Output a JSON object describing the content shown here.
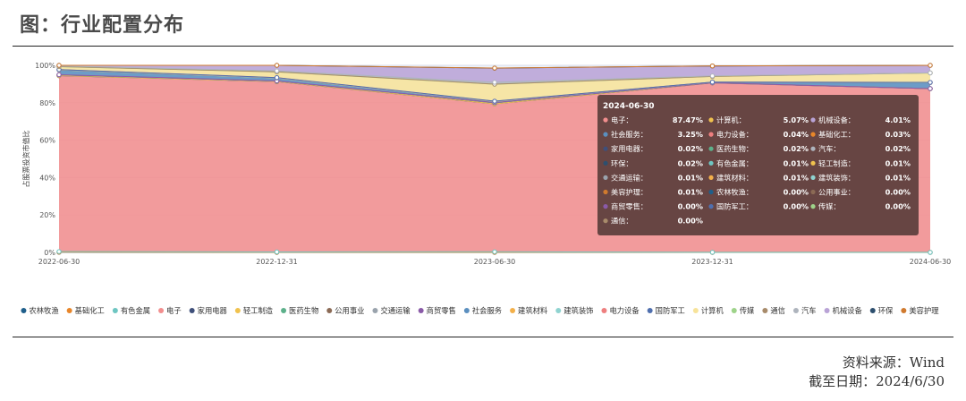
{
  "figure": {
    "title": "图：行业配置分布",
    "source": "资料来源：Wind",
    "as_of": "截至日期：2024/6/30"
  },
  "chart_data": {
    "type": "area",
    "stacked": true,
    "normalized": true,
    "ylabel": "占股票投资市值比",
    "ylim": [
      0,
      100
    ],
    "yticks": [
      "0%",
      "20%",
      "40%",
      "60%",
      "80%",
      "100%"
    ],
    "categories": [
      "2022-06-30",
      "2022-12-31",
      "2023-06-30",
      "2023-12-31",
      "2024-06-30"
    ],
    "series": [
      {
        "name": "农林牧渔",
        "color": "#1f5f8b",
        "values": [
          0.1,
          0.0,
          0.0,
          0.0,
          0.0
        ]
      },
      {
        "name": "基础化工",
        "color": "#e8862a",
        "values": [
          0.05,
          0.05,
          0.05,
          0.03,
          0.03
        ]
      },
      {
        "name": "有色金属",
        "color": "#6ec6c2",
        "values": [
          0.3,
          0.2,
          0.3,
          0.05,
          0.01
        ]
      },
      {
        "name": "电子",
        "color": "#f28e8e",
        "values": [
          94.0,
          91.0,
          79.0,
          90.5,
          87.47
        ]
      },
      {
        "name": "家用电器",
        "color": "#3f4f7a",
        "values": [
          0.05,
          0.05,
          0.05,
          0.02,
          0.02
        ]
      },
      {
        "name": "轻工制造",
        "color": "#f0c24e",
        "values": [
          0.05,
          0.05,
          0.05,
          0.02,
          0.01
        ]
      },
      {
        "name": "医药生物",
        "color": "#5cb08a",
        "values": [
          0.3,
          0.2,
          0.5,
          0.05,
          0.02
        ]
      },
      {
        "name": "公用事业",
        "color": "#8b6a55",
        "values": [
          0.05,
          0.05,
          0.05,
          0.0,
          0.0
        ]
      },
      {
        "name": "交通运输",
        "color": "#9aa3ad",
        "values": [
          0.05,
          0.05,
          0.05,
          0.01,
          0.01
        ]
      },
      {
        "name": "商贸零售",
        "color": "#8a5aa8",
        "values": [
          0.05,
          0.05,
          0.05,
          0.0,
          0.0
        ]
      },
      {
        "name": "社会服务",
        "color": "#5b8fbf",
        "values": [
          2.5,
          1.5,
          0.5,
          0.3,
          3.25
        ]
      },
      {
        "name": "建筑材料",
        "color": "#f3b04a",
        "values": [
          0.05,
          0.05,
          0.05,
          0.01,
          0.01
        ]
      },
      {
        "name": "建筑装饰",
        "color": "#8fd3d0",
        "values": [
          0.05,
          0.05,
          0.05,
          0.01,
          0.01
        ]
      },
      {
        "name": "电力设备",
        "color": "#ee7f7f",
        "values": [
          0.1,
          0.1,
          0.1,
          0.05,
          0.04
        ]
      },
      {
        "name": "国防军工",
        "color": "#4f6fae",
        "values": [
          0.05,
          0.05,
          0.05,
          0.0,
          0.0
        ]
      },
      {
        "name": "计算机",
        "color": "#f7e39a",
        "values": [
          1.5,
          3.0,
          9.0,
          3.0,
          5.07
        ]
      },
      {
        "name": "传媒",
        "color": "#9ed38a",
        "values": [
          0.05,
          0.05,
          0.05,
          0.0,
          0.0
        ]
      },
      {
        "name": "通信",
        "color": "#a88b6b",
        "values": [
          0.05,
          0.05,
          0.05,
          0.0,
          0.0
        ]
      },
      {
        "name": "汽车",
        "color": "#aeb4bd",
        "values": [
          0.3,
          0.5,
          1.0,
          0.3,
          0.02
        ]
      },
      {
        "name": "机械设备",
        "color": "#b9a3d6",
        "values": [
          0.5,
          3.0,
          7.5,
          5.3,
          4.01
        ]
      },
      {
        "name": "环保",
        "color": "#2d4f6e",
        "values": [
          0.05,
          0.05,
          0.05,
          0.02,
          0.02
        ]
      },
      {
        "name": "美容护理",
        "color": "#d07a2e",
        "values": [
          0.1,
          0.05,
          0.05,
          0.01,
          0.01
        ]
      }
    ],
    "tooltip": {
      "date": "2024-06-30",
      "entries": [
        {
          "name": "电子",
          "value": "87.47%",
          "color": "#f28e8e"
        },
        {
          "name": "计算机",
          "value": "5.07%",
          "color": "#f0c24e"
        },
        {
          "name": "机械设备",
          "value": "4.01%",
          "color": "#b9a3d6"
        },
        {
          "name": "社会服务",
          "value": "3.25%",
          "color": "#5b8fbf"
        },
        {
          "name": "电力设备",
          "value": "0.04%",
          "color": "#ee7f7f"
        },
        {
          "name": "基础化工",
          "value": "0.03%",
          "color": "#e8862a"
        },
        {
          "name": "家用电器",
          "value": "0.02%",
          "color": "#3f4f7a"
        },
        {
          "name": "医药生物",
          "value": "0.02%",
          "color": "#5cb08a"
        },
        {
          "name": "汽车",
          "value": "0.02%",
          "color": "#aeb4bd"
        },
        {
          "name": "环保",
          "value": "0.02%",
          "color": "#2d4f6e"
        },
        {
          "name": "有色金属",
          "value": "0.01%",
          "color": "#6ec6c2"
        },
        {
          "name": "轻工制造",
          "value": "0.01%",
          "color": "#f0c24e"
        },
        {
          "name": "交通运输",
          "value": "0.01%",
          "color": "#9aa3ad"
        },
        {
          "name": "建筑材料",
          "value": "0.01%",
          "color": "#f3b04a"
        },
        {
          "name": "建筑装饰",
          "value": "0.01%",
          "color": "#8fd3d0"
        },
        {
          "name": "美容护理",
          "value": "0.01%",
          "color": "#d07a2e"
        },
        {
          "name": "农林牧渔",
          "value": "0.00%",
          "color": "#1f5f8b"
        },
        {
          "name": "公用事业",
          "value": "0.00%",
          "color": "#8b6a55"
        },
        {
          "name": "商贸零售",
          "value": "0.00%",
          "color": "#8a5aa8"
        },
        {
          "name": "国防军工",
          "value": "0.00%",
          "color": "#4f6fae"
        },
        {
          "name": "传媒",
          "value": "0.00%",
          "color": "#9ed38a"
        },
        {
          "name": "通信",
          "value": "0.00%",
          "color": "#a88b6b"
        }
      ]
    },
    "legend_position": "bottom"
  }
}
